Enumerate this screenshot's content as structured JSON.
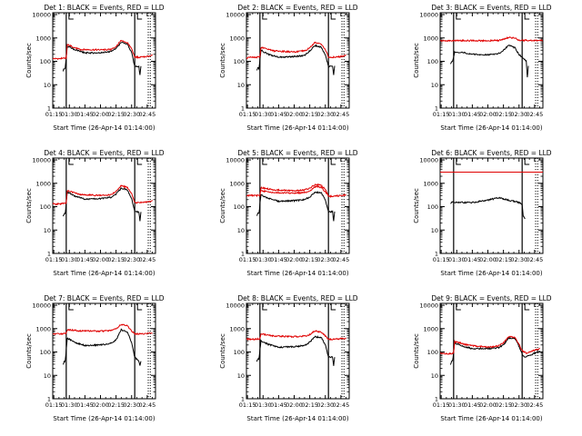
{
  "figure": {
    "xlabel": "Start Time (26-Apr-14 01:14:00)",
    "ylabel": "Counts/sec"
  },
  "colors": {
    "events": "#000000",
    "lld": "#e00000",
    "axes": "#000000",
    "background": "#ffffff"
  },
  "chart_data": [
    {
      "type": "line",
      "title": "Det 1: BLACK = Events, RED = LLD",
      "xlabel": "Start Time (26-Apr-14 01:14:00)",
      "ylabel": "Counts/sec",
      "yscale": "log",
      "xlim": [
        "01:14",
        "02:53"
      ],
      "ylim": [
        1,
        12000
      ],
      "xticks": [
        "01:15",
        "01:30",
        "01:45",
        "02:00",
        "02:15",
        "02:30",
        "02:45"
      ],
      "yticks": [
        1,
        10,
        100,
        1000,
        10000
      ],
      "vlines_solid": [
        "01:27",
        "02:33"
      ],
      "vlines_dotted": [
        "02:46",
        "02:48"
      ],
      "series": [
        {
          "name": "Events",
          "color": "#000000",
          "x": [
            "01:24",
            "01:25",
            "01:26",
            "01:28",
            "01:35",
            "01:45",
            "02:00",
            "02:10",
            "02:15",
            "02:20",
            "02:26",
            "02:30",
            "02:33",
            "02:37",
            "02:38",
            "02:39"
          ],
          "y": [
            40,
            50,
            50,
            450,
            320,
            230,
            230,
            260,
            360,
            650,
            550,
            230,
            60,
            60,
            25,
            60
          ]
        },
        {
          "name": "LLD",
          "color": "#e00000",
          "x": [
            "01:14",
            "01:20",
            "01:25",
            "01:27",
            "01:28",
            "01:40",
            "02:00",
            "02:10",
            "02:15",
            "02:20",
            "02:26",
            "02:30",
            "02:33",
            "02:37",
            "02:45",
            "02:50"
          ],
          "y": [
            130,
            130,
            140,
            140,
            520,
            320,
            310,
            320,
            430,
            800,
            620,
            350,
            150,
            150,
            160,
            180
          ]
        }
      ]
    },
    {
      "type": "line",
      "title": "Det 2: BLACK = Events, RED = LLD",
      "xlabel": "Start Time (26-Apr-14 01:14:00)",
      "ylabel": "Counts/sec",
      "yscale": "log",
      "xlim": [
        "01:14",
        "02:53"
      ],
      "ylim": [
        1,
        12000
      ],
      "xticks": [
        "01:15",
        "01:30",
        "01:45",
        "02:00",
        "02:15",
        "02:30",
        "02:45"
      ],
      "yticks": [
        1,
        10,
        100,
        1000,
        10000
      ],
      "vlines_solid": [
        "01:27",
        "02:33"
      ],
      "vlines_dotted": [
        "02:46",
        "02:48"
      ],
      "series": [
        {
          "name": "Events",
          "color": "#000000",
          "x": [
            "01:24",
            "01:25",
            "01:26",
            "01:28",
            "01:35",
            "01:45",
            "02:00",
            "02:10",
            "02:15",
            "02:20",
            "02:26",
            "02:30",
            "02:33",
            "02:37",
            "02:38",
            "02:39"
          ],
          "y": [
            40,
            50,
            50,
            300,
            200,
            150,
            160,
            180,
            280,
            480,
            400,
            190,
            60,
            60,
            25,
            60
          ]
        },
        {
          "name": "LLD",
          "color": "#e00000",
          "x": [
            "01:14",
            "01:20",
            "01:25",
            "01:27",
            "01:28",
            "01:40",
            "02:00",
            "02:10",
            "02:15",
            "02:20",
            "02:26",
            "02:30",
            "02:33",
            "02:37",
            "02:45",
            "02:50"
          ],
          "y": [
            140,
            150,
            150,
            150,
            400,
            280,
            250,
            280,
            380,
            650,
            560,
            320,
            150,
            150,
            160,
            180
          ]
        }
      ]
    },
    {
      "type": "line",
      "title": "Det 3: BLACK = Events, RED = LLD",
      "xlabel": "Start Time (26-Apr-14 01:14:00)",
      "ylabel": "Counts/sec",
      "yscale": "log",
      "xlim": [
        "01:14",
        "02:53"
      ],
      "ylim": [
        1,
        12000
      ],
      "xticks": [
        "01:15",
        "01:30",
        "01:45",
        "02:00",
        "02:15",
        "02:30",
        "02:45"
      ],
      "yticks": [
        1,
        10,
        100,
        1000,
        10000
      ],
      "vlines_solid": [
        "01:27",
        "02:33"
      ],
      "vlines_dotted": [
        "02:46",
        "02:48"
      ],
      "series": [
        {
          "name": "Events",
          "color": "#000000",
          "x": [
            "01:24",
            "01:25",
            "01:26",
            "01:28",
            "01:35",
            "01:45",
            "02:00",
            "02:10",
            "02:15",
            "02:20",
            "02:26",
            "02:30",
            "02:33",
            "02:37",
            "02:38",
            "02:39"
          ],
          "y": [
            80,
            100,
            100,
            250,
            240,
            200,
            190,
            210,
            300,
            480,
            380,
            200,
            150,
            100,
            20,
            60
          ]
        },
        {
          "name": "LLD",
          "color": "#e00000",
          "x": [
            "01:14",
            "01:30",
            "01:45",
            "02:00",
            "02:10",
            "02:15",
            "02:20",
            "02:26",
            "02:30",
            "02:45",
            "02:53"
          ],
          "y": [
            750,
            770,
            770,
            760,
            780,
            880,
            1050,
            980,
            800,
            780,
            780
          ]
        }
      ]
    },
    {
      "type": "line",
      "title": "Det 4: BLACK = Events, RED = LLD",
      "xlabel": "Start Time (26-Apr-14 01:14:00)",
      "ylabel": "Counts/sec",
      "yscale": "log",
      "xlim": [
        "01:14",
        "02:53"
      ],
      "ylim": [
        1,
        12000
      ],
      "xticks": [
        "01:15",
        "01:30",
        "01:45",
        "02:00",
        "02:15",
        "02:30",
        "02:45"
      ],
      "yticks": [
        1,
        10,
        100,
        1000,
        10000
      ],
      "vlines_solid": [
        "01:27",
        "02:33"
      ],
      "vlines_dotted": [
        "02:46",
        "02:48"
      ],
      "series": [
        {
          "name": "Events",
          "color": "#000000",
          "x": [
            "01:24",
            "01:25",
            "01:26",
            "01:28",
            "01:35",
            "01:45",
            "02:00",
            "02:10",
            "02:15",
            "02:20",
            "02:26",
            "02:30",
            "02:33",
            "02:37",
            "02:38",
            "02:39"
          ],
          "y": [
            40,
            50,
            50,
            420,
            290,
            210,
            220,
            250,
            350,
            620,
            520,
            220,
            60,
            60,
            25,
            60
          ]
        },
        {
          "name": "LLD",
          "color": "#e00000",
          "x": [
            "01:14",
            "01:20",
            "01:25",
            "01:27",
            "01:28",
            "01:40",
            "02:00",
            "02:10",
            "02:15",
            "02:20",
            "02:26",
            "02:30",
            "02:33",
            "02:37",
            "02:45",
            "02:50"
          ],
          "y": [
            130,
            130,
            140,
            140,
            500,
            330,
            300,
            320,
            450,
            800,
            650,
            360,
            150,
            150,
            160,
            180
          ]
        }
      ]
    },
    {
      "type": "line",
      "title": "Det 5: BLACK = Events, RED = LLD",
      "xlabel": "Start Time (26-Apr-14 01:14:00)",
      "ylabel": "Counts/sec",
      "yscale": "log",
      "xlim": [
        "01:14",
        "02:53"
      ],
      "ylim": [
        1,
        12000
      ],
      "xticks": [
        "01:15",
        "01:30",
        "01:45",
        "02:00",
        "02:15",
        "02:30",
        "02:45"
      ],
      "yticks": [
        1,
        10,
        100,
        1000,
        10000
      ],
      "vlines_solid": [
        "01:27",
        "02:33"
      ],
      "vlines_dotted": [
        "02:46",
        "02:48"
      ],
      "series": [
        {
          "name": "Events",
          "color": "#000000",
          "x": [
            "01:24",
            "01:25",
            "01:26",
            "01:28",
            "01:35",
            "01:45",
            "02:00",
            "02:10",
            "02:15",
            "02:20",
            "02:26",
            "02:30",
            "02:33",
            "02:37",
            "02:38",
            "02:39"
          ],
          "y": [
            40,
            50,
            50,
            320,
            230,
            170,
            180,
            200,
            260,
            420,
            400,
            200,
            60,
            60,
            25,
            60
          ]
        },
        {
          "name": "LLD",
          "color": "#e00000",
          "x": [
            "01:14",
            "01:20",
            "01:25",
            "01:27",
            "01:28",
            "01:40",
            "02:00",
            "02:10",
            "02:15",
            "02:20",
            "02:26",
            "02:30",
            "02:33",
            "02:37",
            "02:45",
            "02:50"
          ],
          "y": [
            300,
            300,
            300,
            300,
            650,
            520,
            480,
            520,
            600,
            900,
            820,
            550,
            280,
            280,
            300,
            310
          ]
        },
        {
          "name": "LLD",
          "color": "#e00000",
          "x": [
            "01:28",
            "01:40",
            "02:00",
            "02:10",
            "02:15",
            "02:20",
            "02:26",
            "02:30",
            "02:33"
          ],
          "y": [
            480,
            400,
            380,
            400,
            450,
            700,
            680,
            420,
            300
          ]
        }
      ]
    },
    {
      "type": "line",
      "title": "Det 6: BLACK = Events, RED = LLD",
      "xlabel": "Start Time (26-Apr-14 01:14:00)",
      "ylabel": "Counts/sec",
      "yscale": "log",
      "xlim": [
        "01:14",
        "02:53"
      ],
      "ylim": [
        1,
        12000
      ],
      "xticks": [
        "01:15",
        "01:30",
        "01:45",
        "02:00",
        "02:15",
        "02:30",
        "02:45"
      ],
      "yticks": [
        1,
        10,
        100,
        1000,
        10000
      ],
      "vlines_solid": [
        "01:27",
        "02:33"
      ],
      "vlines_dotted": [
        "02:46",
        "02:48"
      ],
      "series": [
        {
          "name": "Events",
          "color": "#000000",
          "x": [
            "01:24",
            "01:25",
            "01:30",
            "01:45",
            "02:00",
            "02:10",
            "02:20",
            "02:30",
            "02:33",
            "02:34",
            "02:36"
          ],
          "y": [
            130,
            160,
            150,
            150,
            190,
            240,
            190,
            150,
            130,
            40,
            30
          ]
        },
        {
          "name": "LLD",
          "color": "#e00000",
          "x": [
            "01:14",
            "02:53"
          ],
          "y": [
            3000,
            3000
          ]
        }
      ]
    },
    {
      "type": "line",
      "title": "Det 7: BLACK = Events, RED = LLD",
      "xlabel": "Start Time (26-Apr-14 01:14:00)",
      "ylabel": "Counts/sec",
      "yscale": "log",
      "xlim": [
        "01:14",
        "02:53"
      ],
      "ylim": [
        1,
        12000
      ],
      "xticks": [
        "01:15",
        "01:30",
        "01:45",
        "02:00",
        "02:15",
        "02:30",
        "02:45"
      ],
      "yticks": [
        1,
        10,
        100,
        1000,
        10000
      ],
      "vlines_solid": [
        "01:27",
        "02:33"
      ],
      "vlines_dotted": [
        "02:46",
        "02:48"
      ],
      "series": [
        {
          "name": "Events",
          "color": "#000000",
          "x": [
            "01:24",
            "01:25",
            "01:26",
            "01:28",
            "01:35",
            "01:45",
            "02:00",
            "02:10",
            "02:15",
            "02:20",
            "02:26",
            "02:30",
            "02:33",
            "02:37",
            "02:38",
            "02:39"
          ],
          "y": [
            30,
            40,
            40,
            400,
            260,
            190,
            200,
            230,
            330,
            900,
            700,
            250,
            60,
            40,
            25,
            40
          ]
        },
        {
          "name": "LLD",
          "color": "#e00000",
          "x": [
            "01:14",
            "01:20",
            "01:25",
            "01:27",
            "01:28",
            "01:40",
            "02:00",
            "02:10",
            "02:15",
            "02:20",
            "02:26",
            "02:30",
            "02:33",
            "02:37",
            "02:45",
            "02:50"
          ],
          "y": [
            600,
            600,
            620,
            620,
            900,
            800,
            780,
            820,
            1000,
            1500,
            1300,
            800,
            600,
            600,
            620,
            650
          ]
        }
      ]
    },
    {
      "type": "line",
      "title": "Det 8: BLACK = Events, RED = LLD",
      "xlabel": "Start Time (26-Apr-14 01:14:00)",
      "ylabel": "Counts/sec",
      "yscale": "log",
      "xlim": [
        "01:14",
        "02:53"
      ],
      "ylim": [
        1,
        12000
      ],
      "xticks": [
        "01:15",
        "01:30",
        "01:45",
        "02:00",
        "02:15",
        "02:30",
        "02:45"
      ],
      "yticks": [
        1,
        10,
        100,
        1000,
        10000
      ],
      "vlines_solid": [
        "01:27",
        "02:33"
      ],
      "vlines_dotted": [
        "02:46",
        "02:48"
      ],
      "series": [
        {
          "name": "Events",
          "color": "#000000",
          "x": [
            "01:24",
            "01:25",
            "01:26",
            "01:28",
            "01:35",
            "01:45",
            "02:00",
            "02:10",
            "02:15",
            "02:20",
            "02:26",
            "02:30",
            "02:33",
            "02:37",
            "02:38",
            "02:39"
          ],
          "y": [
            40,
            50,
            50,
            300,
            210,
            160,
            170,
            190,
            260,
            450,
            420,
            200,
            60,
            60,
            25,
            60
          ]
        },
        {
          "name": "LLD",
          "color": "#e00000",
          "x": [
            "01:14",
            "01:20",
            "01:25",
            "01:27",
            "01:28",
            "01:40",
            "02:00",
            "02:10",
            "02:15",
            "02:20",
            "02:26",
            "02:30",
            "02:33",
            "02:37",
            "02:45",
            "02:50"
          ],
          "y": [
            350,
            350,
            360,
            360,
            600,
            480,
            450,
            480,
            550,
            800,
            700,
            500,
            350,
            350,
            370,
            380
          ]
        }
      ]
    },
    {
      "type": "line",
      "title": "Det 9: BLACK = Events, RED = LLD",
      "xlabel": "Start Time (26-Apr-14 01:14:00)",
      "ylabel": "Counts/sec",
      "yscale": "log",
      "xlim": [
        "01:14",
        "02:53"
      ],
      "ylim": [
        1,
        12000
      ],
      "xticks": [
        "01:15",
        "01:30",
        "01:45",
        "02:00",
        "02:15",
        "02:30",
        "02:45"
      ],
      "yticks": [
        1,
        10,
        100,
        1000,
        10000
      ],
      "vlines_solid": [
        "01:27",
        "02:33"
      ],
      "vlines_dotted": [
        "02:46",
        "02:48"
      ],
      "series": [
        {
          "name": "Events",
          "color": "#000000",
          "x": [
            "01:24",
            "01:25",
            "01:26",
            "01:28",
            "01:35",
            "01:45",
            "02:00",
            "02:10",
            "02:15",
            "02:20",
            "02:26",
            "02:30",
            "02:33",
            "02:35",
            "02:40",
            "02:45",
            "02:50"
          ],
          "y": [
            30,
            40,
            40,
            250,
            180,
            140,
            140,
            150,
            200,
            400,
            380,
            180,
            80,
            60,
            70,
            90,
            110
          ]
        },
        {
          "name": "LLD",
          "color": "#e00000",
          "x": [
            "01:14",
            "01:20",
            "01:25",
            "01:27",
            "01:28",
            "01:40",
            "02:00",
            "02:10",
            "02:15",
            "02:20",
            "02:26",
            "02:30",
            "02:33",
            "02:37",
            "02:45",
            "02:50"
          ],
          "y": [
            90,
            85,
            85,
            90,
            280,
            200,
            160,
            180,
            250,
            450,
            420,
            220,
            110,
            90,
            120,
            140
          ]
        }
      ]
    }
  ]
}
